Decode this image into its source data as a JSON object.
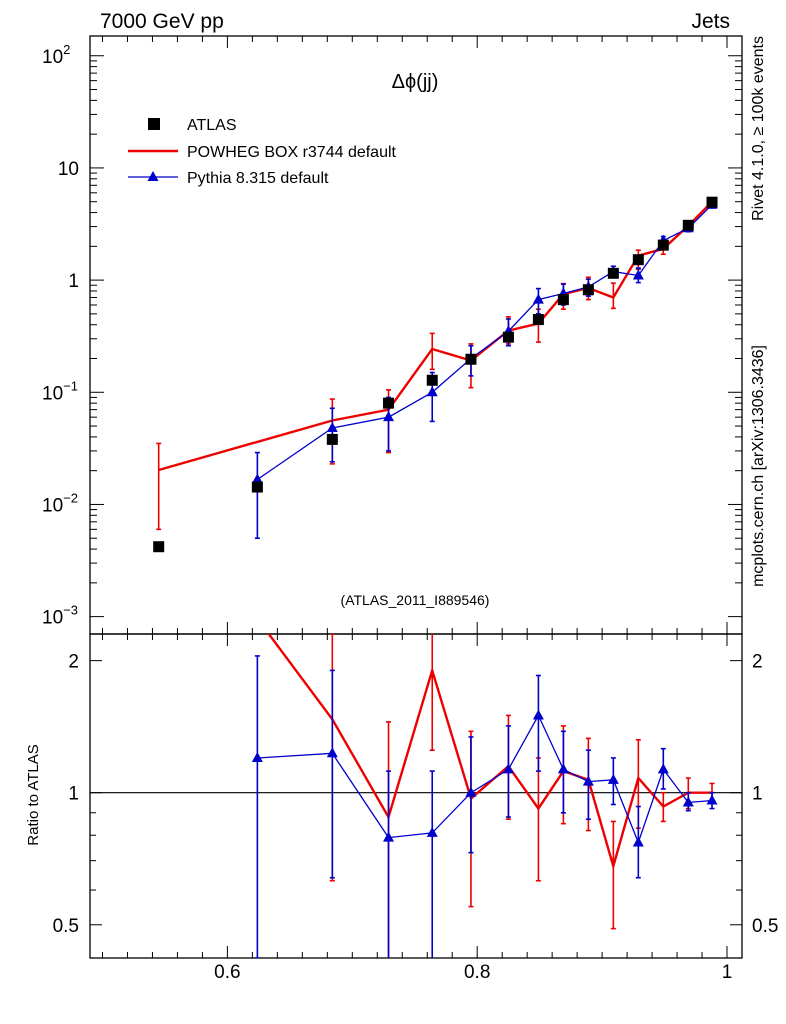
{
  "header": {
    "left": "7000 GeV pp",
    "right": "Jets",
    "side_rivet": "Rivet 4.1.0, ≥ 100k events",
    "side_mcplots": "mcplots.cern.ch [arXiv:1306.3436]"
  },
  "chart_data": {
    "type": "line",
    "title": "Δϕ(jj)",
    "analysis_label": "(ATLAS_2011_I889546)",
    "xlabel": "",
    "ylabel_ratio": "Ratio to ATLAS",
    "xlim": [
      0.49,
      1.012
    ],
    "ylim_main": [
      0.0007,
      150
    ],
    "yscale_main": "log",
    "ylim_ratio": [
      0.42,
      2.3
    ],
    "yscale_ratio": "log",
    "x_ticks": [
      "0.6",
      "0.8",
      "1"
    ],
    "y_ticks_main": [
      {
        "value": 0.001,
        "base": "10",
        "exp": "−3"
      },
      {
        "value": 0.01,
        "base": "10",
        "exp": "−2"
      },
      {
        "value": 0.1,
        "base": "10",
        "exp": "−1"
      },
      {
        "value": 1,
        "label": "1"
      },
      {
        "value": 10,
        "label": "10"
      },
      {
        "value": 100,
        "base": "10",
        "exp": "2"
      }
    ],
    "y_ticks_ratio": [
      {
        "value": 0.5,
        "label": "0.5"
      },
      {
        "value": 1,
        "label": "1"
      },
      {
        "value": 2,
        "label": "2"
      }
    ],
    "legend": [
      {
        "name": "ATLAS",
        "color": "#000000",
        "marker": "square"
      },
      {
        "name": "POWHEG BOX r3744 default",
        "color": "#ee0000",
        "marker": "line"
      },
      {
        "name": "Pythia 8.315 default",
        "color": "#0000cc",
        "marker": "triangle"
      }
    ],
    "x": [
      0.545,
      0.624,
      0.684,
      0.729,
      0.764,
      0.795,
      0.825,
      0.849,
      0.869,
      0.889,
      0.909,
      0.929,
      0.949,
      0.969,
      0.988
    ],
    "series": [
      {
        "name": "ATLAS",
        "color": "#000000",
        "values": [
          0.0042,
          0.0143,
          0.038,
          0.08,
          0.128,
          0.197,
          0.31,
          0.445,
          0.67,
          0.82,
          1.15,
          1.52,
          2.05,
          3.08,
          4.95
        ]
      },
      {
        "name": "POWHEG BOX r3744 default",
        "color": "#ee0000",
        "values": [
          0.0203,
          null,
          0.056,
          0.07,
          0.243,
          0.192,
          0.355,
          0.41,
          0.75,
          0.85,
          0.7,
          1.65,
          1.9,
          3.05,
          5.0
        ],
        "err_low": [
          0.006,
          null,
          0.023,
          0.029,
          0.16,
          0.11,
          0.27,
          0.28,
          0.55,
          0.67,
          0.56,
          1.25,
          1.7,
          2.8,
          4.7
        ],
        "err_high": [
          0.035,
          null,
          0.087,
          0.105,
          0.335,
          0.27,
          0.47,
          0.55,
          0.93,
          1.06,
          0.94,
          1.85,
          2.05,
          3.35,
          5.3
        ]
      },
      {
        "name": "Pythia 8.315 default",
        "color": "#0000cc",
        "values": [
          null,
          0.0167,
          0.048,
          0.06,
          0.1,
          0.2,
          0.35,
          0.67,
          0.76,
          0.87,
          1.19,
          1.1,
          2.25,
          2.9,
          4.7
        ],
        "err_low": [
          null,
          0.005,
          0.024,
          0.03,
          0.055,
          0.14,
          0.26,
          0.5,
          0.6,
          0.72,
          1.05,
          0.95,
          2.0,
          2.7,
          4.4
        ],
        "err_high": [
          null,
          0.029,
          0.072,
          0.09,
          0.15,
          0.26,
          0.45,
          0.84,
          0.92,
          1.02,
          1.33,
          1.28,
          2.45,
          3.1,
          5.0
        ]
      }
    ],
    "ratio": [
      {
        "name": "POWHEG BOX r3744 default",
        "values": [
          null,
          null,
          1.47,
          0.88,
          1.9,
          0.97,
          1.15,
          0.92,
          1.12,
          1.07,
          0.68,
          1.08,
          0.93,
          1.0,
          1.0
        ],
        "err_low": [
          null,
          null,
          0.63,
          0.3,
          1.25,
          0.55,
          0.87,
          0.63,
          0.85,
          0.82,
          0.49,
          0.83,
          0.86,
          0.92,
          0.95
        ],
        "err_high": [
          null,
          null,
          2.3,
          1.45,
          2.4,
          1.38,
          1.5,
          1.2,
          1.42,
          1.33,
          0.86,
          1.32,
          1.0,
          1.08,
          1.05
        ]
      },
      {
        "name": "Pythia 8.315 default",
        "values": [
          null,
          1.2,
          1.23,
          0.79,
          0.81,
          1.0,
          1.13,
          1.5,
          1.13,
          1.06,
          1.07,
          0.77,
          1.13,
          0.95,
          0.96
        ],
        "err_low": [
          null,
          0.42,
          0.64,
          0.4,
          0.39,
          0.73,
          0.88,
          1.12,
          0.9,
          0.87,
          0.94,
          0.64,
          1.02,
          0.91,
          0.92
        ],
        "err_high": [
          null,
          2.05,
          1.9,
          1.12,
          1.12,
          1.34,
          1.42,
          1.85,
          1.38,
          1.25,
          1.2,
          0.93,
          1.26,
          1.0,
          1.0
        ]
      }
    ],
    "ratio_reference": 1
  }
}
